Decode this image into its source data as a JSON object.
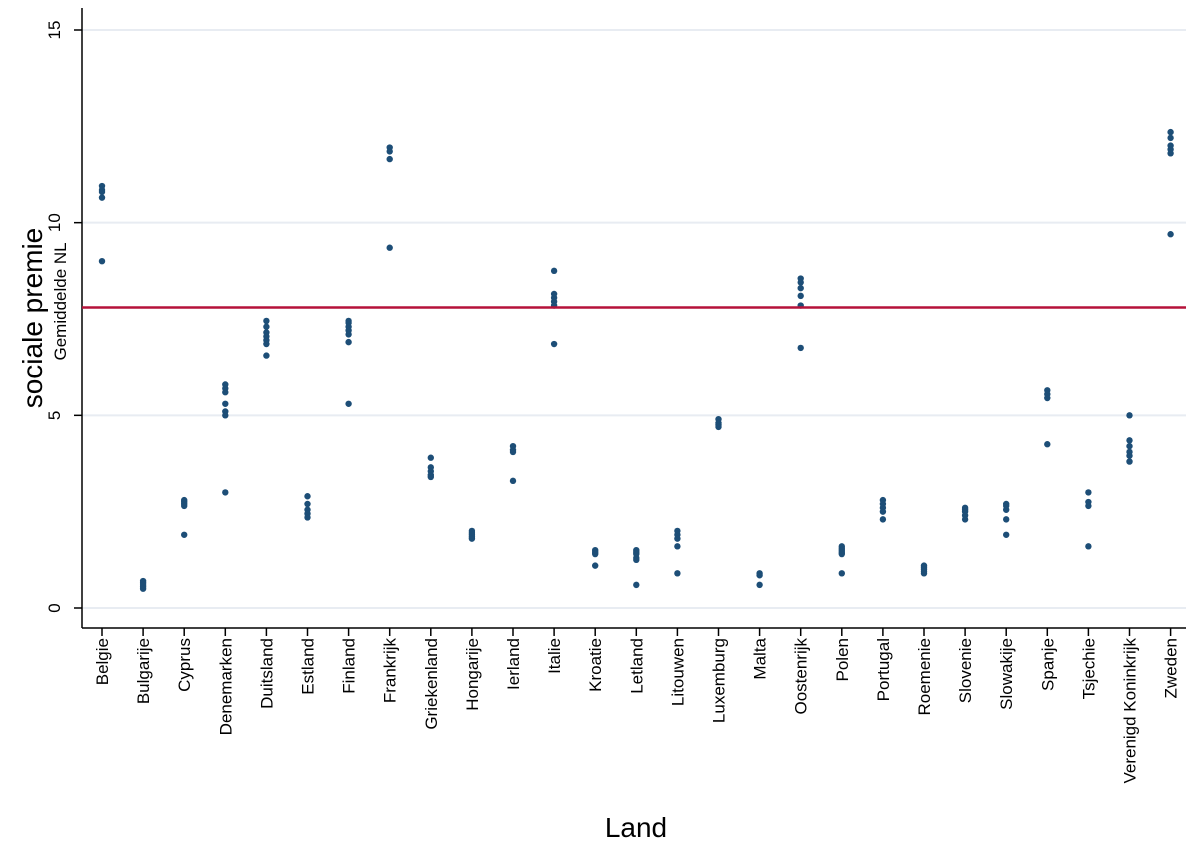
{
  "chart_data": {
    "type": "scatter",
    "xlabel": "Land",
    "ylabel": "sociale premie",
    "ylim": [
      0,
      15
    ],
    "yticks": [
      0,
      5,
      10,
      15
    ],
    "grid": true,
    "reference_line": {
      "y": 7.8,
      "label": "Gemiddelde NL",
      "color": "#b5123a"
    },
    "marker_color": "#1d4e77",
    "categories": [
      "Belgie",
      "Bulgarije",
      "Cyprus",
      "Denemarken",
      "Duitsland",
      "Estland",
      "Finland",
      "Frankrijk",
      "Griekenland",
      "Hongarije",
      "Ierland",
      "Italie",
      "Kroatie",
      "Letland",
      "Litouwen",
      "Luxemburg",
      "Malta",
      "Oostenrijk",
      "Polen",
      "Portugal",
      "Roemenie",
      "Slovenie",
      "Slowakije",
      "Spanje",
      "Tsjechie",
      "Verenigd Koninkrijk",
      "Zweden"
    ],
    "points": [
      [
        10.95,
        10.85,
        10.8,
        10.65,
        9.0
      ],
      [
        0.7,
        0.65,
        0.6,
        0.55,
        0.5
      ],
      [
        2.8,
        2.75,
        2.7,
        2.65,
        1.9
      ],
      [
        5.8,
        5.7,
        5.6,
        5.3,
        5.1,
        5.0,
        3.0
      ],
      [
        7.45,
        7.3,
        7.15,
        7.05,
        6.95,
        6.85,
        6.55
      ],
      [
        2.9,
        2.7,
        2.55,
        2.45,
        2.35
      ],
      [
        7.45,
        7.4,
        7.3,
        7.2,
        7.1,
        6.9,
        5.3
      ],
      [
        11.95,
        11.85,
        11.65,
        9.35
      ],
      [
        3.9,
        3.65,
        3.55,
        3.45,
        3.4
      ],
      [
        2.0,
        1.95,
        1.9,
        1.85,
        1.8
      ],
      [
        4.2,
        4.1,
        4.05,
        3.3
      ],
      [
        8.75,
        8.15,
        8.05,
        7.95,
        7.85,
        6.85
      ],
      [
        1.5,
        1.45,
        1.4,
        1.1
      ],
      [
        1.5,
        1.45,
        1.4,
        1.3,
        1.25,
        0.6
      ],
      [
        2.0,
        1.9,
        1.8,
        1.6,
        0.9
      ],
      [
        4.9,
        4.8,
        4.75,
        4.7
      ],
      [
        0.9,
        0.85,
        0.6
      ],
      [
        8.55,
        8.45,
        8.3,
        8.1,
        7.85,
        6.75
      ],
      [
        1.6,
        1.55,
        1.5,
        1.45,
        1.4,
        0.9
      ],
      [
        2.8,
        2.7,
        2.6,
        2.5,
        2.3
      ],
      [
        1.1,
        1.05,
        1.0,
        0.95,
        0.9
      ],
      [
        2.6,
        2.55,
        2.5,
        2.4,
        2.3
      ],
      [
        2.7,
        2.65,
        2.55,
        2.3,
        1.9
      ],
      [
        5.65,
        5.55,
        5.45,
        4.25
      ],
      [
        3.0,
        2.75,
        2.65,
        1.6
      ],
      [
        5.0,
        4.35,
        4.2,
        4.05,
        3.95,
        3.8
      ],
      [
        12.35,
        12.2,
        12.0,
        11.9,
        11.8,
        9.7
      ]
    ]
  }
}
